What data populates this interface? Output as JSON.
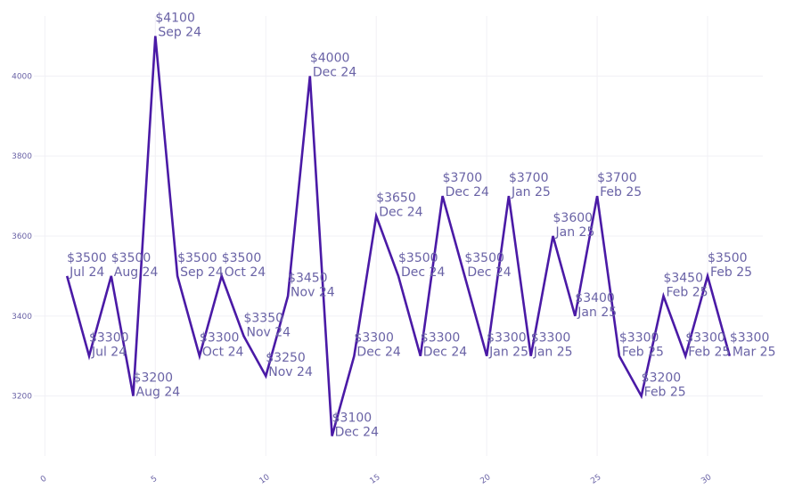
{
  "chart_data": {
    "type": "line",
    "title": "",
    "xlabel": "",
    "ylabel": "",
    "xlim": [
      -0.5,
      32.5
    ],
    "ylim": [
      3050,
      4150
    ],
    "x_ticks": [
      0,
      5,
      10,
      15,
      20,
      25,
      30
    ],
    "y_ticks": [
      3200,
      3400,
      3600,
      3800,
      4000
    ],
    "grid": true,
    "line_color": "#4a1aa6",
    "label_color": "#6a63a6",
    "series": [
      {
        "name": "price",
        "points": [
          {
            "x": 1,
            "y": 3500,
            "price": "$3500",
            "date": "Jul 24"
          },
          {
            "x": 2,
            "y": 3300,
            "price": "$3300",
            "date": "Jul 24"
          },
          {
            "x": 3,
            "y": 3500,
            "price": "$3500",
            "date": "Aug 24"
          },
          {
            "x": 4,
            "y": 3200,
            "price": "$3200",
            "date": "Aug 24"
          },
          {
            "x": 5,
            "y": 4100,
            "price": "$4100",
            "date": "Sep 24"
          },
          {
            "x": 6,
            "y": 3500,
            "price": "$3500",
            "date": "Sep 24"
          },
          {
            "x": 7,
            "y": 3300,
            "price": "$3300",
            "date": "Oct 24"
          },
          {
            "x": 8,
            "y": 3500,
            "price": "$3500",
            "date": "Oct 24"
          },
          {
            "x": 9,
            "y": 3350,
            "price": "$3350",
            "date": "Nov 24"
          },
          {
            "x": 10,
            "y": 3250,
            "price": "$3250",
            "date": "Nov 24"
          },
          {
            "x": 11,
            "y": 3450,
            "price": "$3450",
            "date": "Nov 24"
          },
          {
            "x": 12,
            "y": 4000,
            "price": "$4000",
            "date": "Dec 24"
          },
          {
            "x": 13,
            "y": 3100,
            "price": "$3100",
            "date": "Dec 24"
          },
          {
            "x": 14,
            "y": 3300,
            "price": "$3300",
            "date": "Dec 24"
          },
          {
            "x": 15,
            "y": 3650,
            "price": "$3650",
            "date": "Dec 24"
          },
          {
            "x": 16,
            "y": 3500,
            "price": "$3500",
            "date": "Dec 24"
          },
          {
            "x": 17,
            "y": 3300,
            "price": "$3300",
            "date": "Dec 24"
          },
          {
            "x": 18,
            "y": 3700,
            "price": "$3700",
            "date": "Dec 24"
          },
          {
            "x": 19,
            "y": 3500,
            "price": "$3500",
            "date": "Dec 24"
          },
          {
            "x": 20,
            "y": 3300,
            "price": "$3300",
            "date": "Jan 25"
          },
          {
            "x": 21,
            "y": 3700,
            "price": "$3700",
            "date": "Jan 25"
          },
          {
            "x": 22,
            "y": 3300,
            "price": "$3300",
            "date": "Jan 25"
          },
          {
            "x": 23,
            "y": 3600,
            "price": "$3600",
            "date": "Jan 25"
          },
          {
            "x": 24,
            "y": 3400,
            "price": "$3400",
            "date": "Jan 25"
          },
          {
            "x": 25,
            "y": 3700,
            "price": "$3700",
            "date": "Feb 25"
          },
          {
            "x": 26,
            "y": 3300,
            "price": "$3300",
            "date": "Feb 25"
          },
          {
            "x": 27,
            "y": 3200,
            "price": "$3200",
            "date": "Feb 25"
          },
          {
            "x": 28,
            "y": 3450,
            "price": "$3450",
            "date": "Feb 25"
          },
          {
            "x": 29,
            "y": 3300,
            "price": "$3300",
            "date": "Feb 25"
          },
          {
            "x": 30,
            "y": 3500,
            "price": "$3500",
            "date": "Feb 25"
          },
          {
            "x": 31,
            "y": 3300,
            "price": "$3300",
            "date": "Mar 25"
          }
        ]
      }
    ]
  }
}
